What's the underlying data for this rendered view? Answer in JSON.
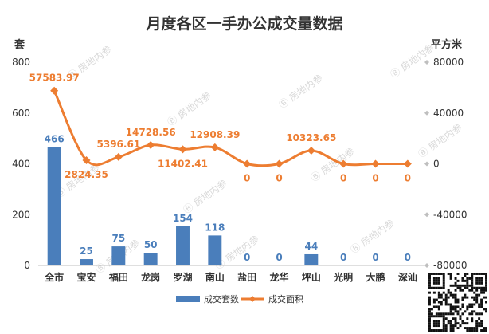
{
  "chart_data": {
    "type": "bar",
    "title": "月度各区一手办公成交量数据",
    "y_left_unit": "套",
    "y_right_unit": "平方米",
    "categories": [
      "全市",
      "宝安",
      "福田",
      "龙岗",
      "罗湖",
      "南山",
      "盐田",
      "龙华",
      "坪山",
      "光明",
      "大鹏",
      "深汕"
    ],
    "left_ticks": [
      "0",
      "200",
      "400",
      "600",
      "800"
    ],
    "right_ticks": [
      "-80000",
      "-40000",
      "0",
      "40000",
      "80000"
    ],
    "ylim_left": [
      0,
      800
    ],
    "ylim_right": [
      -80000,
      80000
    ],
    "grid": false,
    "legend_position": "bottom",
    "series": [
      {
        "name": "成交套数",
        "type": "bar",
        "axis": "left",
        "color": "#4a7ebb",
        "values": [
          466,
          25,
          75,
          50,
          154,
          118,
          0,
          0,
          44,
          0,
          0,
          0
        ],
        "labels": [
          "466",
          "25",
          "75",
          "50",
          "154",
          "118",
          "0",
          "0",
          "44",
          "0",
          "0",
          "0"
        ]
      },
      {
        "name": "成交面积",
        "type": "line",
        "axis": "right",
        "color": "#ed7d31",
        "values": [
          57583.97,
          2824.35,
          5396.61,
          14728.56,
          11402.41,
          12908.39,
          0,
          0,
          10323.65,
          0,
          0,
          0
        ],
        "labels": [
          "57583.97",
          "2824.35",
          "5396.61",
          "14728.56",
          "11402.41",
          "12908.39",
          "0",
          "0",
          "10323.65",
          "0",
          "0",
          "0"
        ]
      }
    ]
  },
  "watermark": "房地内参",
  "qr_icon": "qr-code-icon"
}
